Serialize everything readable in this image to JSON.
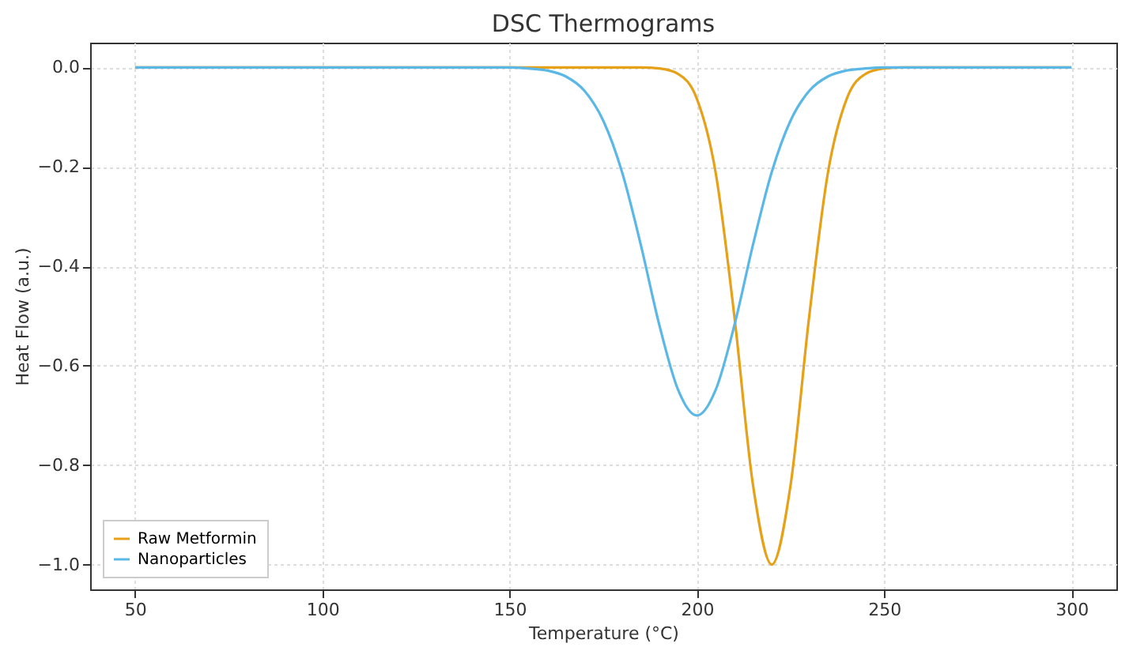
{
  "chart_data": {
    "type": "line",
    "title": "DSC Thermograms",
    "xlabel": "Temperature (°C)",
    "ylabel": "Heat Flow (a.u.)",
    "x": [
      50,
      150,
      155,
      160,
      165,
      170,
      175,
      180,
      185,
      190,
      195,
      200,
      205,
      210,
      215,
      220,
      225,
      230,
      235,
      240,
      245,
      250,
      255,
      260,
      300
    ],
    "series": [
      {
        "name": "Raw Metformin",
        "color": "#e6a118",
        "values": [
          0,
          0,
          0,
          0,
          0,
          0,
          0,
          0,
          0,
          -0.002,
          -0.013,
          -0.063,
          -0.211,
          -0.5,
          -0.841,
          -1,
          -0.841,
          -0.5,
          -0.211,
          -0.063,
          -0.013,
          -0.002,
          0,
          0,
          0
        ]
      },
      {
        "name": "Nanoparticles",
        "color": "#5bb8e6",
        "values": [
          0,
          0,
          -0.002,
          -0.006,
          -0.018,
          -0.047,
          -0.107,
          -0.21,
          -0.356,
          -0.519,
          -0.649,
          -0.7,
          -0.649,
          -0.519,
          -0.356,
          -0.21,
          -0.107,
          -0.047,
          -0.018,
          -0.006,
          -0.002,
          0,
          0,
          0,
          0
        ]
      }
    ],
    "xlim": [
      38,
      312
    ],
    "xticks": [
      50,
      100,
      150,
      200,
      250,
      300
    ],
    "ylim": [
      -1.05,
      0.05
    ],
    "yticks": [
      {
        "value": -1,
        "label": "−1.0"
      },
      {
        "value": -0.8,
        "label": "−0.8"
      },
      {
        "value": -0.6,
        "label": "−0.6"
      },
      {
        "value": -0.4,
        "label": "−0.4"
      },
      {
        "value": -0.2,
        "label": "−0.2"
      },
      {
        "value": 0,
        "label": "0.0"
      }
    ],
    "grid": true,
    "legend": "bottom left"
  }
}
